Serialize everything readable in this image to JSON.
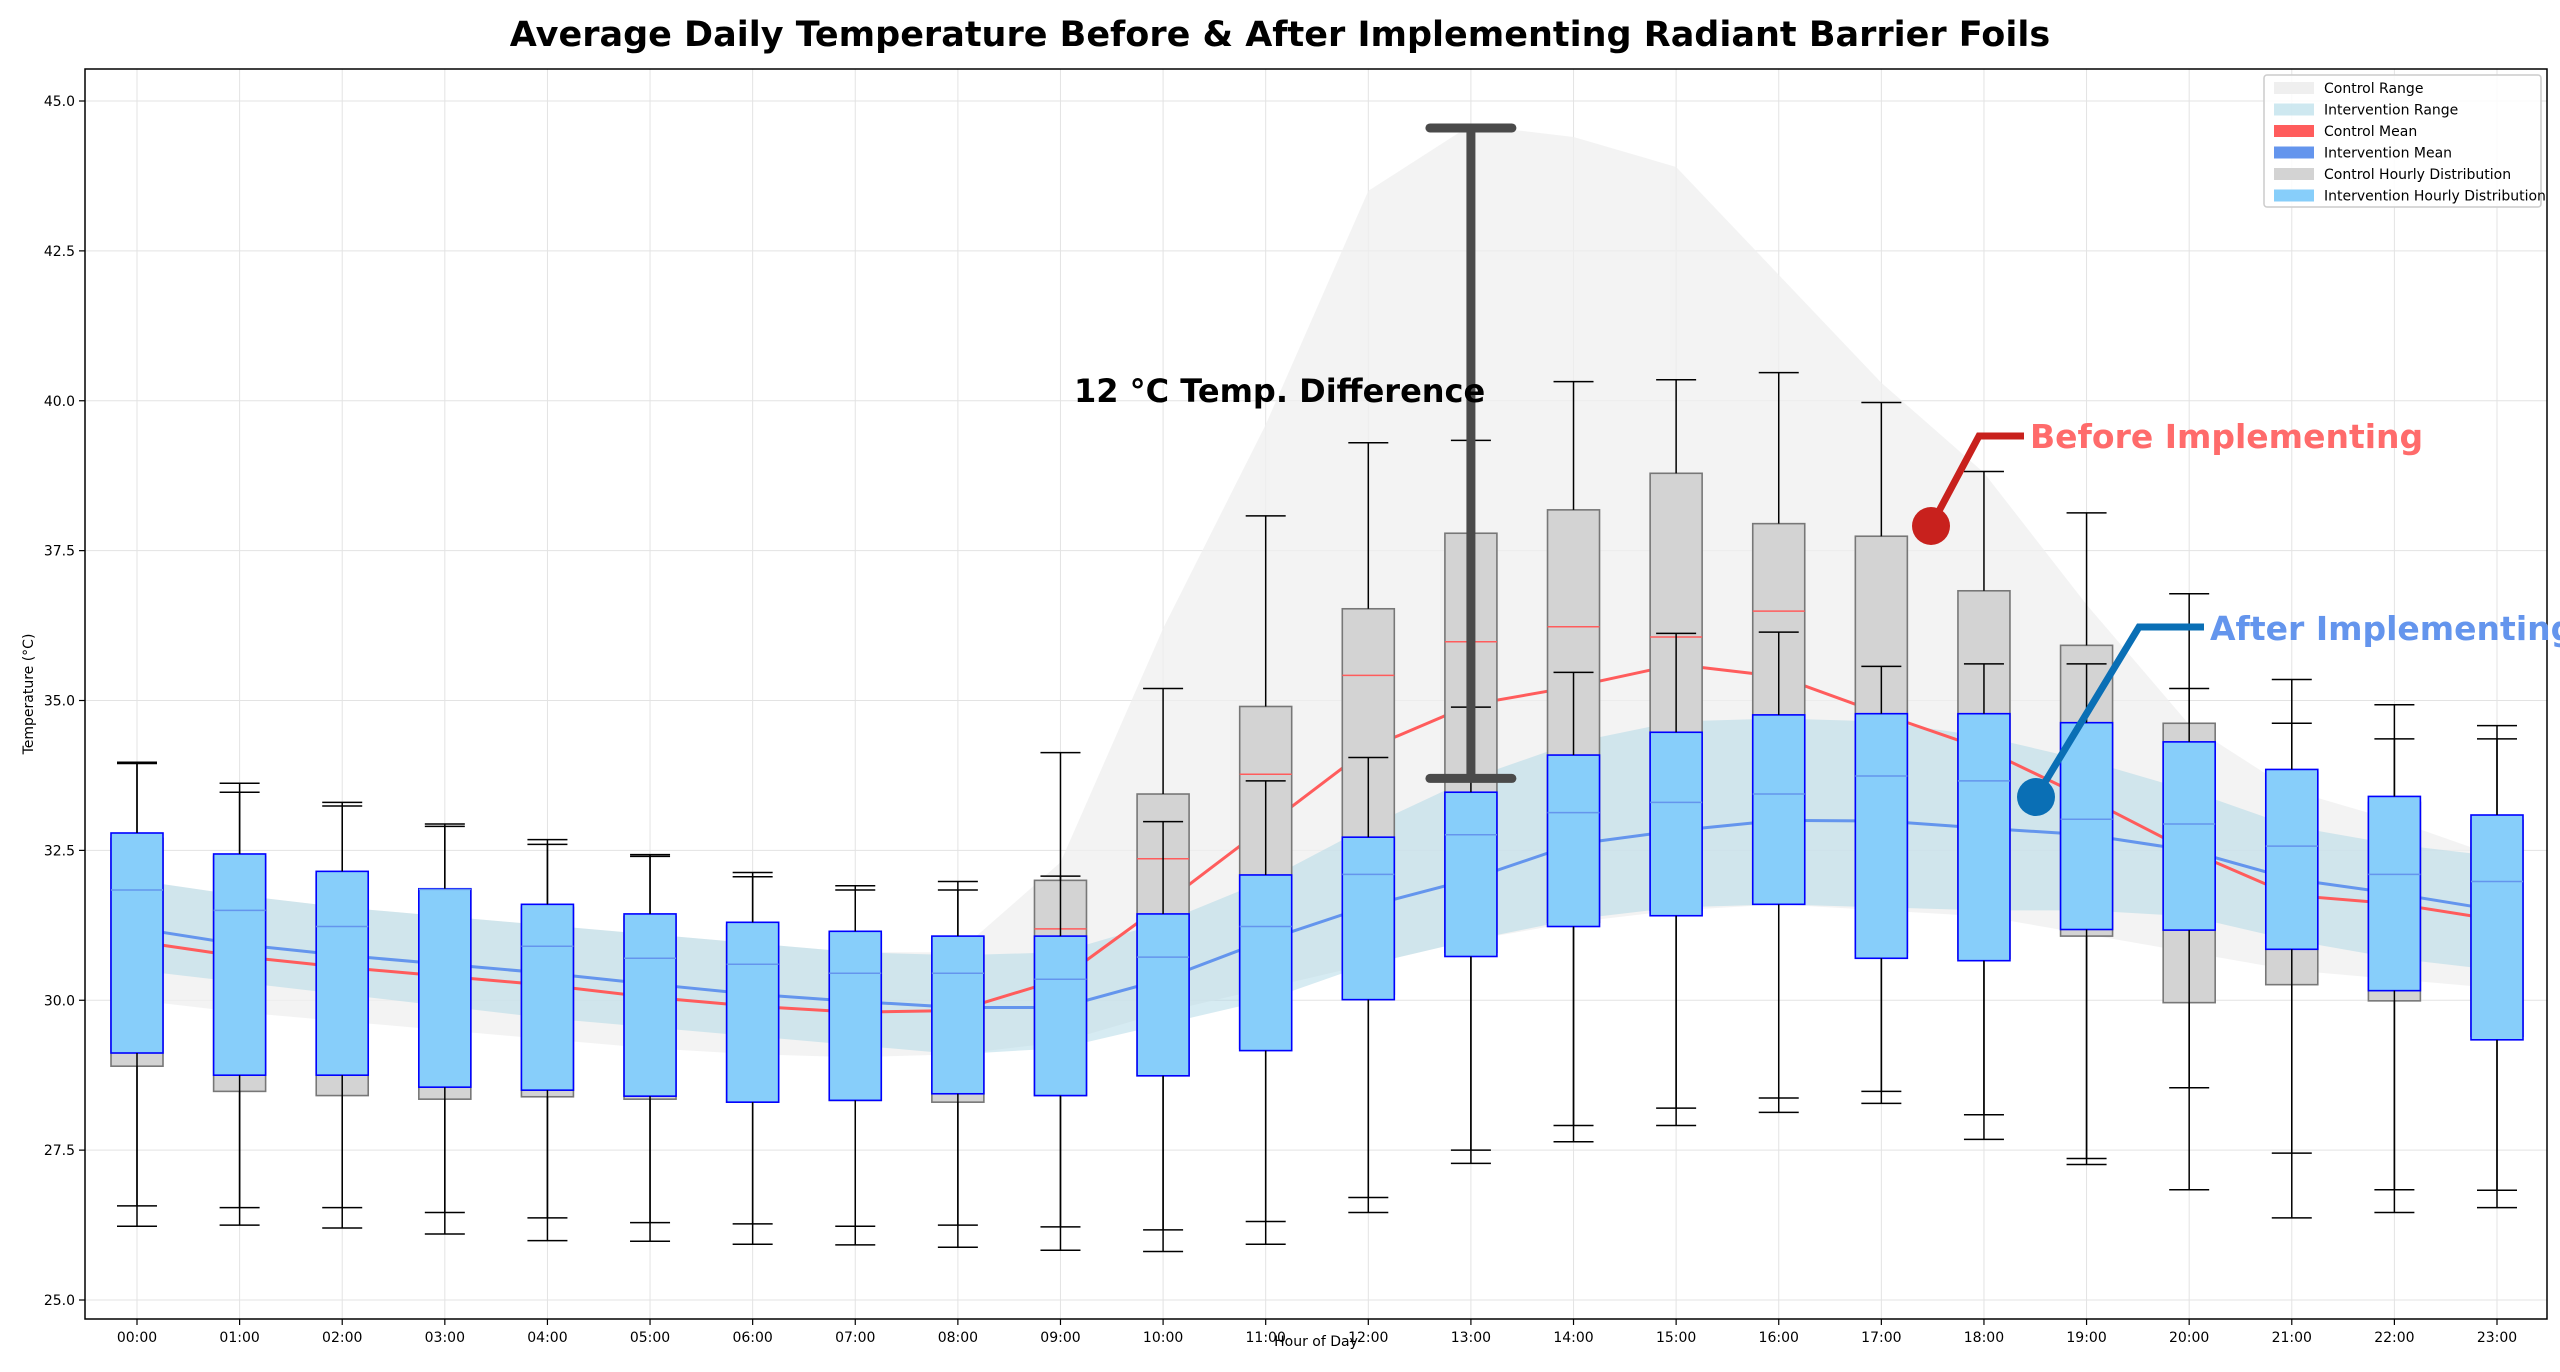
{
  "chart_data": {
    "type": "box",
    "title": "Average Daily Temperature Before & After Implementing Radiant Barrier Foils",
    "xlabel": "Hour of Day",
    "ylabel": "Temperature (°C)",
    "ylim": [
      25,
      45.5
    ],
    "yticks": [
      "25.0",
      "27.5",
      "30.0",
      "32.5",
      "35.0",
      "37.5",
      "40.0",
      "42.5",
      "45.0"
    ],
    "grid": true,
    "legend_position": "top-right",
    "categories": [
      "00:00",
      "01:00",
      "02:00",
      "03:00",
      "04:00",
      "05:00",
      "06:00",
      "07:00",
      "08:00",
      "09:00",
      "10:00",
      "11:00",
      "12:00",
      "13:00",
      "14:00",
      "15:00",
      "16:00",
      "17:00",
      "18:00",
      "19:00",
      "20:00",
      "21:00",
      "22:00",
      "23:00"
    ],
    "legend": [
      "Control Range",
      "Intervention Range",
      "Control Mean",
      "Intervention Mean",
      "Control Hourly Distribution",
      "Intervention Hourly Distribution"
    ],
    "colors": {
      "control_range": "#efefef",
      "intervention_range": "#add8e6",
      "control_mean": "#ff5c5c",
      "intervention_mean": "#6495ed",
      "control_box": "#d3d3d3",
      "intervention_box": "#87cefa",
      "intervention_box_edge": "#0000ff"
    },
    "control": {
      "mean": [
        30.98,
        30.73,
        30.55,
        30.4,
        30.25,
        30.05,
        29.9,
        29.8,
        29.83,
        30.35,
        31.6,
        32.9,
        34.2,
        34.93,
        35.23,
        35.6,
        35.4,
        34.78,
        34.19,
        33.37,
        32.49,
        31.75,
        31.61,
        31.34
      ],
      "range_low": [
        30.0,
        29.8,
        29.65,
        29.5,
        29.35,
        29.2,
        29.1,
        29.05,
        29.1,
        29.3,
        29.8,
        30.2,
        30.6,
        31.0,
        31.3,
        31.5,
        31.6,
        31.5,
        31.4,
        31.1,
        30.8,
        30.5,
        30.35,
        30.2
      ],
      "range_high": [
        32.0,
        31.75,
        31.55,
        31.4,
        31.25,
        31.1,
        30.95,
        30.8,
        30.8,
        32.3,
        36.2,
        39.6,
        43.5,
        44.6,
        44.4,
        43.9,
        42.1,
        40.3,
        38.8,
        36.6,
        34.6,
        33.5,
        33.0,
        32.4
      ],
      "q1": [
        28.9,
        28.48,
        28.41,
        28.35,
        28.39,
        28.35,
        28.3,
        28.33,
        28.3,
        28.41,
        28.74,
        29.2,
        30.1,
        30.8,
        31.3,
        31.5,
        31.7,
        30.8,
        30.7,
        31.07,
        29.96,
        30.26,
        29.99,
        29.4
      ],
      "median": [
        31.44,
        31.25,
        31.07,
        31.03,
        30.9,
        30.6,
        30.43,
        30.3,
        30.42,
        31.19,
        32.36,
        33.77,
        35.42,
        35.98,
        36.23,
        36.06,
        36.49,
        34.78,
        33.92,
        33.78,
        33.06,
        32.14,
        31.94,
        31.67
      ],
      "q3": [
        32.7,
        32.4,
        32.1,
        31.85,
        31.55,
        31.4,
        31.25,
        31.1,
        31.05,
        32.0,
        33.44,
        34.9,
        36.53,
        37.79,
        38.18,
        38.79,
        37.95,
        37.74,
        36.83,
        35.92,
        34.62,
        33.8,
        33.3,
        33.0
      ],
      "whisker_low": [
        26.23,
        26.25,
        26.2,
        26.1,
        25.99,
        25.98,
        25.93,
        25.92,
        25.88,
        25.83,
        25.81,
        25.93,
        26.46,
        27.28,
        27.64,
        27.91,
        28.13,
        28.28,
        27.68,
        27.26,
        26.84,
        26.37,
        26.46,
        26.54
      ],
      "whisker_high": [
        33.97,
        33.62,
        33.3,
        32.94,
        32.68,
        32.43,
        32.13,
        31.91,
        31.98,
        34.13,
        35.2,
        38.08,
        39.3,
        39.34,
        40.32,
        40.35,
        40.47,
        39.97,
        38.82,
        38.13,
        36.78,
        35.35,
        34.93,
        34.58
      ]
    },
    "intervention": {
      "mean": [
        31.2,
        30.93,
        30.75,
        30.6,
        30.45,
        30.27,
        30.1,
        29.98,
        29.88,
        29.88,
        30.35,
        31.0,
        31.57,
        32.02,
        32.6,
        32.83,
        33.0,
        32.99,
        32.87,
        32.76,
        32.5,
        32.02,
        31.78,
        31.5
      ],
      "range_low": [
        30.5,
        30.3,
        30.1,
        29.9,
        29.7,
        29.55,
        29.4,
        29.25,
        29.1,
        29.2,
        29.6,
        30.0,
        30.6,
        31.0,
        31.35,
        31.55,
        31.6,
        31.55,
        31.5,
        31.5,
        31.4,
        31.0,
        30.7,
        30.5
      ],
      "range_high": [
        32.0,
        31.75,
        31.55,
        31.4,
        31.25,
        31.1,
        30.95,
        30.8,
        30.75,
        30.8,
        31.3,
        32.0,
        32.9,
        33.7,
        34.3,
        34.65,
        34.7,
        34.65,
        34.4,
        34.0,
        33.5,
        32.9,
        32.6,
        32.4
      ],
      "q1": [
        29.12,
        28.75,
        28.75,
        28.55,
        28.5,
        28.4,
        28.3,
        28.33,
        28.44,
        28.41,
        28.74,
        29.16,
        30.01,
        30.73,
        31.23,
        31.41,
        31.6,
        30.7,
        30.66,
        31.18,
        31.17,
        30.85,
        30.16,
        29.34
      ],
      "median": [
        31.84,
        31.5,
        31.23,
        31.85,
        30.9,
        30.7,
        30.6,
        30.45,
        30.45,
        30.35,
        30.72,
        31.23,
        32.1,
        32.76,
        33.13,
        33.3,
        33.44,
        33.74,
        33.66,
        33.02,
        32.94,
        32.57,
        32.1,
        31.98
      ],
      "q3": [
        32.79,
        32.44,
        32.15,
        31.86,
        31.6,
        31.44,
        31.3,
        31.15,
        31.07,
        31.07,
        31.44,
        32.09,
        32.72,
        33.47,
        34.09,
        34.47,
        34.76,
        34.78,
        34.78,
        34.63,
        34.31,
        33.85,
        33.4,
        33.09
      ],
      "whisker_low": [
        26.57,
        26.54,
        26.54,
        26.46,
        26.37,
        26.29,
        26.27,
        26.23,
        26.25,
        26.22,
        26.17,
        26.31,
        26.71,
        27.5,
        27.91,
        28.2,
        28.37,
        28.48,
        28.09,
        27.36,
        28.54,
        27.45,
        26.84,
        26.83
      ],
      "whisker_high": [
        33.95,
        33.47,
        33.24,
        32.9,
        32.6,
        32.4,
        32.06,
        31.84,
        31.84,
        32.07,
        32.98,
        33.66,
        34.05,
        34.89,
        35.47,
        36.12,
        36.14,
        35.57,
        35.61,
        35.61,
        35.2,
        34.62,
        34.36,
        34.36
      ]
    },
    "annotations": {
      "difference_label": "12 °C Temp. Difference",
      "before_label": "Before Implementing",
      "after_label": "After Implementing",
      "before_color": "#ff6b6b",
      "after_color": "#6495ed"
    }
  }
}
